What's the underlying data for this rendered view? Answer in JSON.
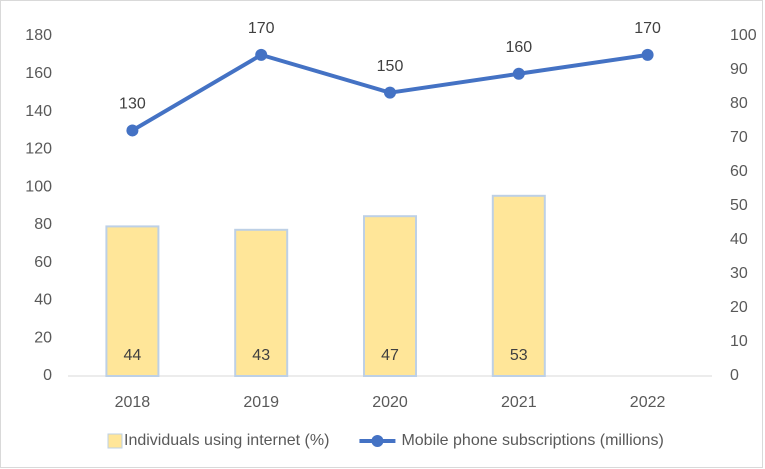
{
  "chart_data": {
    "type": "bar-line",
    "categories": [
      "2018",
      "2019",
      "2020",
      "2021",
      "2022"
    ],
    "series": [
      {
        "name": "Individuals using internet (%)",
        "type": "bar",
        "axis": "y2",
        "color": "#ffe699",
        "values": [
          44,
          43,
          47,
          53,
          null
        ]
      },
      {
        "name": "Mobile phone subscriptions (millions)",
        "type": "line",
        "axis": "y",
        "color": "#4472c4",
        "values": [
          130,
          170,
          150,
          160,
          170
        ]
      }
    ],
    "ylim": [
      0,
      180
    ],
    "yticks": [
      0,
      20,
      40,
      60,
      80,
      100,
      120,
      140,
      160,
      180
    ],
    "y2lim": [
      0,
      100
    ],
    "y2ticks": [
      0,
      10,
      20,
      30,
      40,
      50,
      60,
      70,
      80,
      90,
      100
    ],
    "grid": false,
    "legend": "bottom"
  }
}
